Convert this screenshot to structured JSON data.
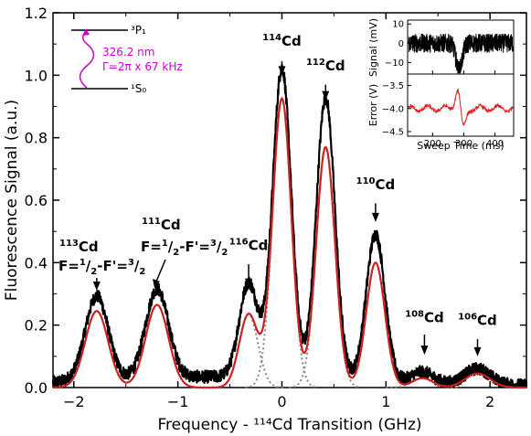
{
  "chart_data": [
    {
      "type": "line",
      "xlabel": "Frequency - ¹¹⁴Cd Transition (GHz)",
      "ylabel": "Fluorescence Signal (a.u.)",
      "xlim": [
        -2.2,
        2.35
      ],
      "ylim": [
        0.0,
        1.2
      ],
      "xticks": [
        -2,
        -1,
        0,
        1,
        2
      ],
      "xtick_labels": [
        "−2",
        "−1",
        "0",
        "1",
        "2"
      ],
      "yticks": [
        0.0,
        0.2,
        0.4,
        0.6,
        0.8,
        1.0,
        1.2
      ],
      "ytick_labels": [
        "0.0",
        "0.2",
        "0.4",
        "0.6",
        "0.8",
        "1.0",
        "1.2"
      ],
      "series": [
        {
          "role": "data",
          "color": "#000000",
          "noise": 0.02,
          "baseline": 0.03
        },
        {
          "role": "fit",
          "color": "#cc2222"
        },
        {
          "role": "components",
          "color": "#888888",
          "dotted": true
        }
      ],
      "peaks": [
        {
          "center": -1.78,
          "data_height": 0.27,
          "fit_height": 0.245,
          "width": 0.11
        },
        {
          "center": -1.2,
          "data_height": 0.285,
          "fit_height": 0.265,
          "width": 0.11
        },
        {
          "center": -0.32,
          "data_height": 0.3,
          "fit_height": 0.235,
          "width": 0.09
        },
        {
          "center": 0.0,
          "data_height": 0.99,
          "fit_height": 0.925,
          "width": 0.09
        },
        {
          "center": 0.42,
          "data_height": 0.9,
          "fit_height": 0.77,
          "width": 0.09
        },
        {
          "center": 0.9,
          "data_height": 0.47,
          "fit_height": 0.4,
          "width": 0.09
        },
        {
          "center": 1.35,
          "data_height": 0.035,
          "fit_height": 0.03,
          "width": 0.1
        },
        {
          "center": 1.88,
          "data_height": 0.05,
          "fit_height": 0.045,
          "width": 0.12
        }
      ],
      "annotations": [
        {
          "iso": "114",
          "text": "Cd",
          "x": 0.0,
          "y_text": 1.095,
          "arrow_from": 1.045,
          "arrow_to": 1.0
        },
        {
          "iso": "112",
          "text": "Cd",
          "x": 0.42,
          "y_text": 1.015,
          "arrow_from": 0.97,
          "arrow_to": 0.92
        },
        {
          "iso": "110",
          "text": "Cd",
          "x": 0.9,
          "y_text": 0.635,
          "arrow_from": 0.59,
          "arrow_to": 0.53
        },
        {
          "iso": "116",
          "text": "Cd",
          "x": -0.32,
          "y_text": 0.44,
          "arrow_from": 0.395,
          "arrow_to": 0.32
        },
        {
          "iso": "108",
          "text": "Cd",
          "x": 1.37,
          "y_text": 0.21,
          "arrow_from": 0.17,
          "arrow_to": 0.105
        },
        {
          "iso": "106",
          "text": "Cd",
          "x": 1.88,
          "y_text": 0.2,
          "arrow_from": 0.155,
          "arrow_to": 0.1
        }
      ],
      "labels_111_113": {
        "iso_113": "113",
        "iso_111": "111",
        "cd": "Cd",
        "f_prefix": "F=",
        "f_mid": "-F'=",
        "one": "1",
        "three": "3",
        "half": "2"
      },
      "level_diagram": {
        "upper": "³P₁",
        "lower": "¹S₀",
        "wavelength": "326.2 nm",
        "linewidth": "Γ=2π x 67 kHz"
      }
    },
    {
      "type": "line",
      "panel": "inset-signal",
      "ylabel": "Signal (mV)",
      "xlim": [
        120,
        460
      ],
      "ylim": [
        -16,
        12
      ],
      "yticks": [
        -10,
        0,
        10
      ],
      "ytick_labels": [
        "−10",
        "0",
        "10"
      ]
    },
    {
      "type": "line",
      "panel": "inset-error",
      "xlabel": "Sweep Time (ms)",
      "ylabel": "Error (V)",
      "xlim": [
        120,
        460
      ],
      "ylim": [
        -4.6,
        -3.25
      ],
      "xticks": [
        200,
        300,
        400
      ],
      "xtick_labels": [
        "200",
        "300",
        "400"
      ],
      "yticks": [
        -4.5,
        -4.0,
        -3.5
      ],
      "ytick_labels": [
        "−4.5",
        "−4.0",
        "−3.5"
      ]
    }
  ]
}
